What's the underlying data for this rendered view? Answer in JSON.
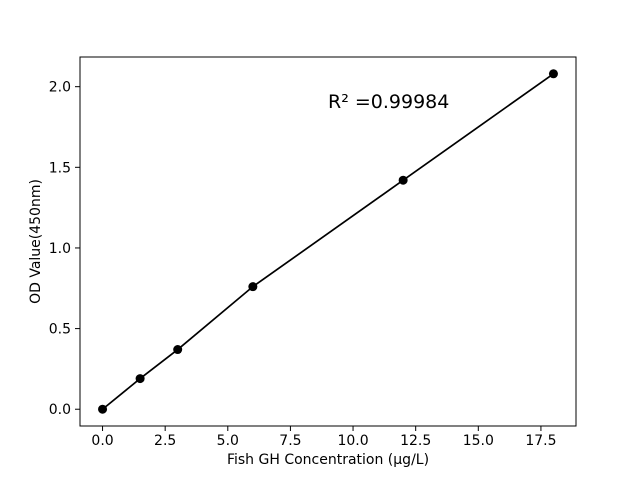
{
  "chart_data": {
    "type": "line",
    "title": "",
    "xlabel": "Fish GH Concentration (µg/L)",
    "ylabel": "OD Value(450nm)",
    "series": [
      {
        "name": "standard-curve",
        "x": [
          0,
          1.5,
          3,
          6,
          12,
          18
        ],
        "y": [
          0.0,
          0.19,
          0.37,
          0.76,
          1.42,
          2.08
        ],
        "marker": "circle",
        "line_color": "#000000",
        "marker_color": "#000000"
      }
    ],
    "xlim": [
      -0.9,
      18.9
    ],
    "ylim": [
      -0.104,
      2.184
    ],
    "xticks": {
      "values": [
        0,
        2.5,
        5,
        7.5,
        10,
        12.5,
        15,
        17.5
      ],
      "labels": [
        "0.0",
        "2.5",
        "5.0",
        "7.5",
        "10.0",
        "12.5",
        "15.0",
        "17.5"
      ]
    },
    "yticks": {
      "values": [
        0,
        0.5,
        1,
        1.5,
        2
      ],
      "labels": [
        "0.0",
        "0.5",
        "1.0",
        "1.5",
        "2.0"
      ]
    },
    "annotation": {
      "text": "R² =0.99984",
      "x": 9.0,
      "y": 1.868
    },
    "grid": false,
    "legend": false,
    "colors": {
      "axes": "#000000",
      "text": "#000000",
      "background": "#ffffff"
    }
  }
}
